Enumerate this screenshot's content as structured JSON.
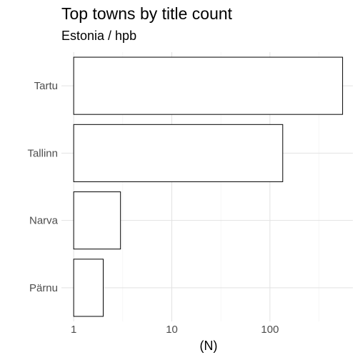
{
  "chart_data": {
    "type": "bar",
    "orientation": "horizontal",
    "title": "Top towns by title count",
    "subtitle": "Estonia / hpb",
    "xlabel": "(N)",
    "ylabel": "",
    "x_scale": "log10",
    "xlim": [
      0.75,
      700
    ],
    "x_ticks": [
      {
        "value": 1,
        "label": "1"
      },
      {
        "value": 10,
        "label": "10"
      },
      {
        "value": 100,
        "label": "100"
      }
    ],
    "categories": [
      "Tartu",
      "Tallinn",
      "Narva",
      "Pärnu"
    ],
    "values": [
      550,
      135,
      3,
      2
    ],
    "bar_fill": "#ffffff",
    "bar_stroke": "#000000",
    "grid": true,
    "legend": "none"
  }
}
